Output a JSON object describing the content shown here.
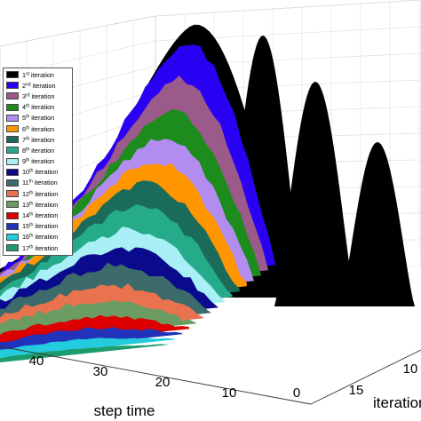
{
  "chart_data": {
    "type": "area",
    "style": "3d-waterfall",
    "xlabel": "step time",
    "ylabel": "iteration",
    "x_ticks": [
      10,
      20,
      30,
      40
    ],
    "y_ticks": [
      10,
      15
    ],
    "z_tick_visible": "0",
    "grid": true,
    "legend_position": "upper-left",
    "series": [
      {
        "name": "1st iteration",
        "ord": "st",
        "n": "1",
        "color": "#000000",
        "peak": 5.6
      },
      {
        "name": "2nd iteration",
        "ord": "nd",
        "n": "2",
        "color": "#2a00f2",
        "peak": 5.3
      },
      {
        "name": "3rd iteration",
        "ord": "rd",
        "n": "3",
        "color": "#9a5a8a",
        "peak": 4.6
      },
      {
        "name": "4th iteration",
        "ord": "th",
        "n": "4",
        "color": "#1c8c1c",
        "peak": 4.0
      },
      {
        "name": "5th iteration",
        "ord": "th",
        "n": "5",
        "color": "#b38cf0",
        "peak": 3.5
      },
      {
        "name": "6th iteration",
        "ord": "th",
        "n": "6",
        "color": "#ff9600",
        "peak": 3.1
      },
      {
        "name": "7th iteration",
        "ord": "th",
        "n": "7",
        "color": "#1a6b5a",
        "peak": 2.7
      },
      {
        "name": "8th iteration",
        "ord": "th",
        "n": "8",
        "color": "#25ab8a",
        "peak": 2.3
      },
      {
        "name": "9th iteration",
        "ord": "th",
        "n": "9",
        "color": "#a8f0f5",
        "peak": 1.9
      },
      {
        "name": "10th iteration",
        "ord": "th",
        "n": "10",
        "color": "#0a0a8c",
        "peak": 1.6
      },
      {
        "name": "11th iteration",
        "ord": "th",
        "n": "11",
        "color": "#3d6b6b",
        "peak": 1.3
      },
      {
        "name": "12th iteration",
        "ord": "th",
        "n": "12",
        "color": "#e8734e",
        "peak": 1.0
      },
      {
        "name": "13th iteration",
        "ord": "th",
        "n": "13",
        "color": "#6b9c62",
        "peak": 0.75
      },
      {
        "name": "14th iteration",
        "ord": "th",
        "n": "14",
        "color": "#dd0000",
        "peak": 0.5
      },
      {
        "name": "15th iteration",
        "ord": "th",
        "n": "15",
        "color": "#2233bb",
        "peak": 0.35
      },
      {
        "name": "16th iteration",
        "ord": "th",
        "n": "16",
        "color": "#22ccdd",
        "peak": 0.22
      },
      {
        "name": "17th iteration",
        "ord": "th",
        "n": "17",
        "color": "#1c9c6c",
        "peak": 0.12
      }
    ]
  }
}
